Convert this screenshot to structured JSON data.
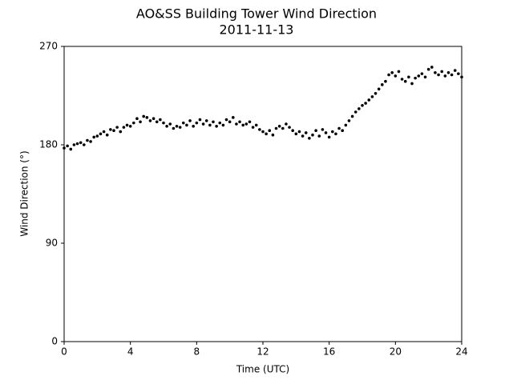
{
  "chart_data": {
    "type": "scatter",
    "title": "AO&SS Building Tower Wind Direction",
    "subtitle": "2011-11-13",
    "x_label": "Time (UTC)",
    "y_label": "Wind Direction (°)",
    "xlim": [
      0,
      24
    ],
    "xticks": [
      0,
      4,
      8,
      12,
      16,
      20,
      24
    ],
    "ylim": [
      0,
      270
    ],
    "yticks": [
      0,
      90,
      180,
      270
    ],
    "color": "#000000",
    "x": [
      0,
      0.2,
      0.4,
      0.6,
      0.8,
      1.0,
      1.2,
      1.4,
      1.6,
      1.8,
      2.0,
      2.2,
      2.4,
      2.6,
      2.8,
      3.0,
      3.2,
      3.4,
      3.6,
      3.8,
      4.0,
      4.2,
      4.4,
      4.6,
      4.8,
      5.0,
      5.2,
      5.4,
      5.6,
      5.8,
      6.0,
      6.2,
      6.4,
      6.6,
      6.8,
      7.0,
      7.2,
      7.4,
      7.6,
      7.8,
      8.0,
      8.2,
      8.4,
      8.6,
      8.8,
      9.0,
      9.2,
      9.4,
      9.6,
      9.8,
      10.0,
      10.2,
      10.4,
      10.6,
      10.8,
      11.0,
      11.2,
      11.4,
      11.6,
      11.8,
      12.0,
      12.2,
      12.4,
      12.6,
      12.8,
      13.0,
      13.2,
      13.4,
      13.6,
      13.8,
      14.0,
      14.2,
      14.4,
      14.6,
      14.8,
      15.0,
      15.2,
      15.4,
      15.6,
      15.8,
      16.0,
      16.2,
      16.4,
      16.6,
      16.8,
      17.0,
      17.2,
      17.4,
      17.6,
      17.8,
      18.0,
      18.2,
      18.4,
      18.6,
      18.8,
      19.0,
      19.2,
      19.4,
      19.6,
      19.8,
      20.0,
      20.2,
      20.4,
      20.6,
      20.8,
      21.0,
      21.2,
      21.4,
      21.6,
      21.8,
      22.0,
      22.2,
      22.4,
      22.6,
      22.8,
      23.0,
      23.2,
      23.4,
      23.6,
      23.8,
      24.0
    ],
    "values": [
      177,
      179,
      176,
      180,
      181,
      182,
      180,
      184,
      183,
      187,
      188,
      190,
      192,
      189,
      194,
      193,
      196,
      192,
      196,
      198,
      197,
      200,
      204,
      201,
      206,
      205,
      202,
      204,
      201,
      203,
      200,
      197,
      199,
      195,
      197,
      196,
      200,
      198,
      202,
      197,
      200,
      203,
      199,
      202,
      198,
      201,
      197,
      200,
      198,
      203,
      201,
      205,
      199,
      201,
      198,
      199,
      201,
      196,
      198,
      194,
      192,
      190,
      193,
      189,
      195,
      197,
      195,
      199,
      196,
      193,
      190,
      192,
      188,
      191,
      186,
      189,
      193,
      188,
      194,
      191,
      187,
      192,
      190,
      195,
      193,
      198,
      202,
      206,
      210,
      213,
      216,
      218,
      221,
      224,
      227,
      231,
      235,
      238,
      244,
      246,
      243,
      247,
      240,
      238,
      242,
      236,
      241,
      243,
      245,
      242,
      249,
      251,
      246,
      244,
      247,
      243,
      246,
      244,
      248,
      245,
      242
    ]
  }
}
